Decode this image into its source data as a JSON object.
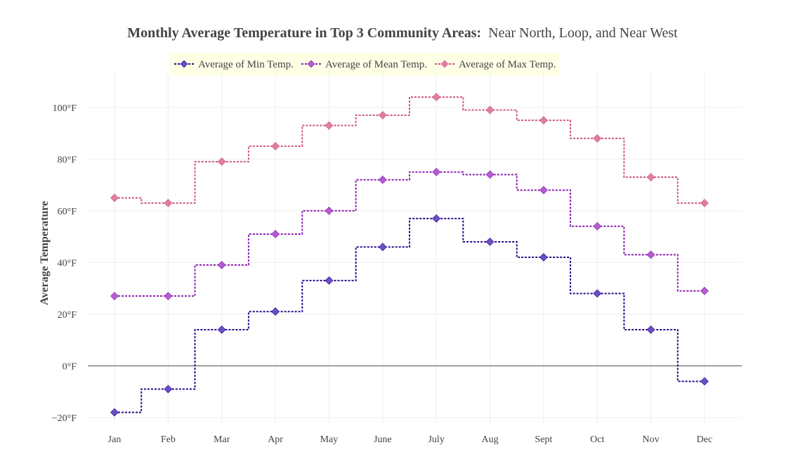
{
  "chart_data": {
    "type": "line",
    "line_shape": "step",
    "title_bold": "Monthly Average Temperature in Top 3 Community Areas:",
    "title_rest": "Near North, Loop, and Near West",
    "xlabel": "",
    "ylabel": "Average Temperature",
    "categories": [
      "Jan",
      "Feb",
      "Mar",
      "Apr",
      "May",
      "June",
      "July",
      "Aug",
      "Sept",
      "Oct",
      "Nov",
      "Dec"
    ],
    "y_ticks": [
      {
        "value": -20,
        "label": "−20°F"
      },
      {
        "value": 0,
        "label": "0°F"
      },
      {
        "value": 20,
        "label": "20°F"
      },
      {
        "value": 40,
        "label": "40°F"
      },
      {
        "value": 60,
        "label": "60°F"
      },
      {
        "value": 80,
        "label": "80°F"
      },
      {
        "value": 100,
        "label": "100°F"
      }
    ],
    "ylim": [
      -23,
      113
    ],
    "grid": true,
    "legend_position": "top",
    "legend_background": "#ffffe6",
    "series": [
      {
        "name": "Average of Min Temp.",
        "line_color": "#2a0a8c",
        "marker_color": "#6a4fc4",
        "values": [
          -18,
          -9,
          14,
          21,
          33,
          46,
          57,
          48,
          42,
          28,
          14,
          -6
        ]
      },
      {
        "name": "Average of Mean Temp.",
        "line_color": "#8e1fb0",
        "marker_color": "#b45cd0",
        "values": [
          27,
          27,
          39,
          51,
          60,
          72,
          75,
          74,
          68,
          54,
          43,
          29
        ]
      },
      {
        "name": "Average of Max Temp.",
        "line_color": "#cc5585",
        "marker_color": "#e07da0",
        "values": [
          65,
          63,
          79,
          85,
          93,
          97,
          104,
          99,
          95,
          88,
          73,
          63
        ]
      }
    ]
  }
}
